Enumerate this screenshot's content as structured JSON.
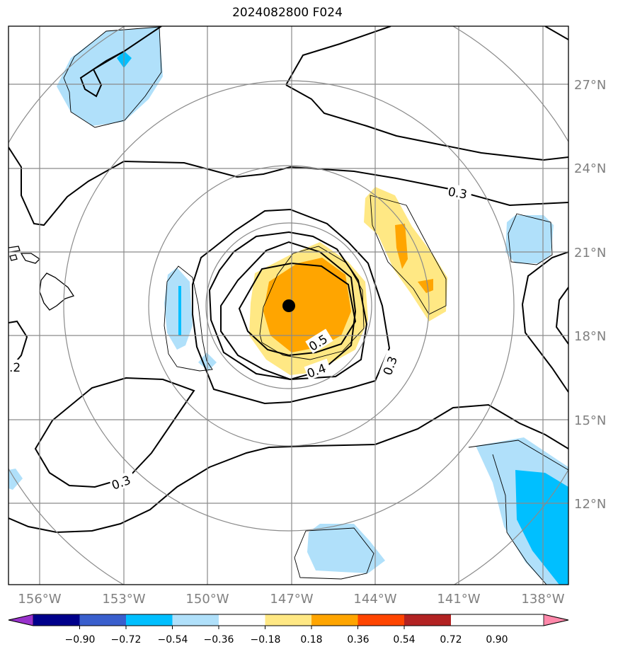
{
  "title": "2024082800 F024",
  "x_tick_labels": [
    "156°W",
    "153°W",
    "150°W",
    "147°W",
    "144°W",
    "141°W",
    "138°W"
  ],
  "y_tick_labels": [
    "27°N",
    "24°N",
    "21°N",
    "18°N",
    "15°N",
    "12°N"
  ],
  "contour_labels": [
    "0.3",
    "0.5",
    "0.4",
    "0.3",
    "0.3",
    ".2"
  ],
  "colorbar": {
    "tick_labels": [
      "−0.90",
      "−0.72",
      "−0.54",
      "−0.36",
      "−0.18",
      "0.18",
      "0.36",
      "0.54",
      "0.72",
      "0.90"
    ],
    "colors": [
      "#9932cc",
      "#00008b",
      "#3a5fcd",
      "#00bfff",
      "#b0e0fa",
      "#ffffff",
      "#ffe884",
      "#ffa500",
      "#ff4500",
      "#b22222",
      "#ff88aa"
    ]
  },
  "colors": {
    "grid": "#8a8a8a",
    "tick_label": "#808080",
    "contour": "#000000",
    "storm_center": "#000000"
  }
}
